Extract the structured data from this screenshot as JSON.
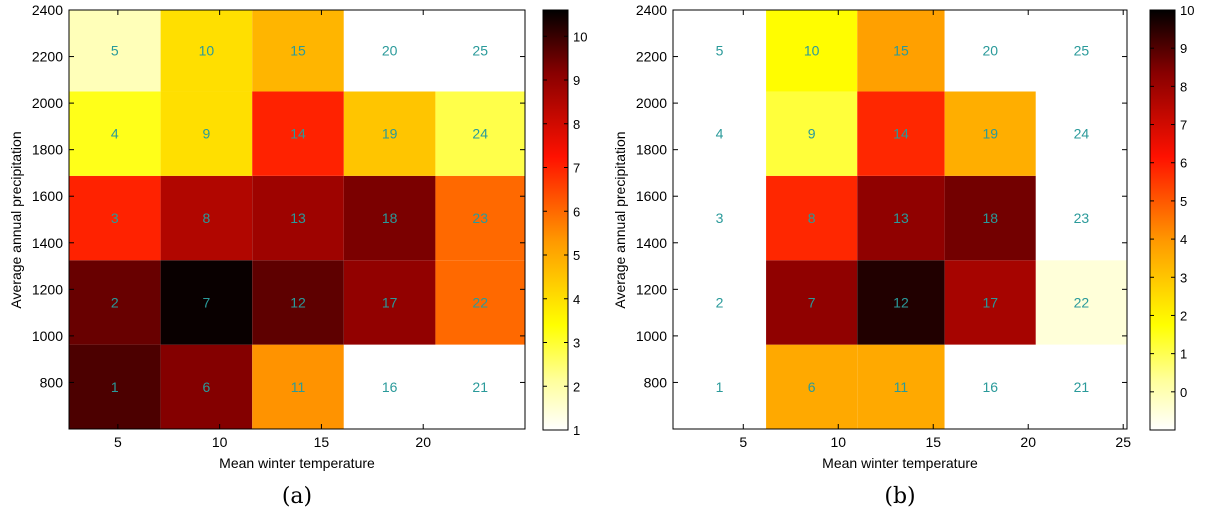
{
  "chart_data": [
    {
      "type": "heatmap",
      "panel_label": "(a)",
      "xlabel": "Mean winter temperature",
      "ylabel": "Average annual precipitation",
      "xlim": [
        2.6,
        25
      ],
      "ylim": [
        600,
        2400
      ],
      "xticks": [
        5,
        10,
        15,
        20
      ],
      "yticks": [
        800,
        1000,
        1200,
        1400,
        1600,
        1800,
        2000,
        2200,
        2400
      ],
      "x_edges": [
        2.6,
        7.1,
        11.6,
        16.1,
        20.6,
        25
      ],
      "y_edges": [
        600,
        962.5,
        1325,
        1687.5,
        2050,
        2412.5
      ],
      "colorbar": {
        "min": 1,
        "max": 10.6,
        "ticks": [
          1,
          2,
          3,
          4,
          5,
          6,
          7,
          8,
          9,
          10
        ]
      },
      "cell_labels": [
        [
          1,
          6,
          11,
          16,
          21
        ],
        [
          2,
          7,
          12,
          17,
          22
        ],
        [
          3,
          8,
          13,
          18,
          23
        ],
        [
          4,
          9,
          14,
          19,
          24
        ],
        [
          5,
          10,
          15,
          20,
          25
        ]
      ],
      "values": [
        [
          9.8,
          9.2,
          5.4,
          null,
          null
        ],
        [
          9.5,
          10.5,
          9.6,
          9.0,
          6.0
        ],
        [
          7.0,
          8.5,
          8.8,
          9.3,
          6.0
        ],
        [
          3.2,
          4.0,
          7.0,
          4.5,
          2.8
        ],
        [
          1.8,
          4.0,
          4.8,
          null,
          null
        ]
      ]
    },
    {
      "type": "heatmap",
      "panel_label": "(b)",
      "xlabel": "Mean winter temperature",
      "ylabel": "Average annual precipitation",
      "xlim": [
        1.3,
        25.2
      ],
      "ylim": [
        600,
        2400
      ],
      "xticks": [
        5,
        10,
        15,
        20,
        25
      ],
      "yticks": [
        800,
        1000,
        1200,
        1400,
        1600,
        1800,
        2000,
        2200,
        2400
      ],
      "x_edges": [
        1.3,
        6.2,
        11.0,
        15.6,
        20.4,
        25.2
      ],
      "y_edges": [
        600,
        962.5,
        1325,
        1687.5,
        2050,
        2412.5
      ],
      "colorbar": {
        "min": -1,
        "max": 10,
        "ticks": [
          0,
          1,
          2,
          3,
          4,
          5,
          6,
          7,
          8,
          9,
          10
        ]
      },
      "cell_labels": [
        [
          1,
          6,
          11,
          16,
          21
        ],
        [
          2,
          7,
          12,
          17,
          22
        ],
        [
          3,
          8,
          13,
          18,
          23
        ],
        [
          4,
          9,
          14,
          19,
          24
        ],
        [
          5,
          10,
          15,
          20,
          25
        ]
      ],
      "values": [
        [
          null,
          3.6,
          3.6,
          null,
          null
        ],
        [
          null,
          8.2,
          9.6,
          7.8,
          -0.5
        ],
        [
          null,
          5.8,
          8.2,
          8.6,
          null
        ],
        [
          null,
          1.2,
          5.8,
          3.5,
          null
        ],
        [
          null,
          1.8,
          3.8,
          null,
          null
        ]
      ]
    }
  ]
}
